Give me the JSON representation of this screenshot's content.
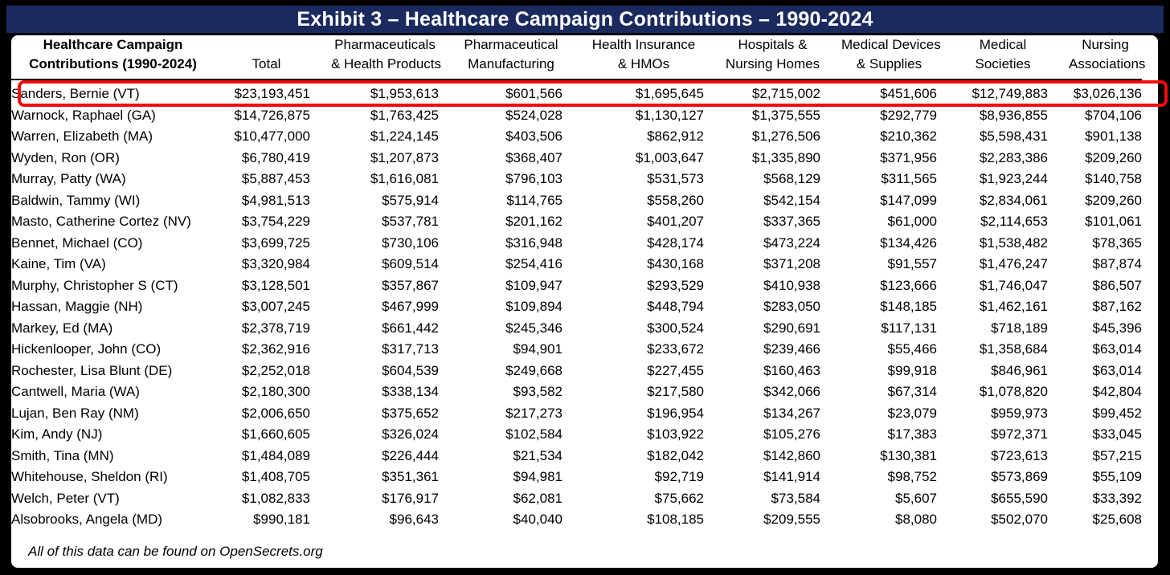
{
  "title": "Exhibit 3 – Healthcare Campaign Contributions – 1990-2024",
  "footer": "All of this data can be found on OpenSecrets.org",
  "colors": {
    "title_bar_background": "#1b2a5e",
    "title_text": "#ffffff",
    "page_border": "#000000",
    "table_background": "#ffffff",
    "highlight_border": "#f20d0d"
  },
  "highlight": {
    "highlighted_row": "Sanders, Bernie (VT)"
  },
  "table": {
    "columns": [
      {
        "id": "contributor",
        "lines": [
          "Healthcare Campaign",
          "Contributions (1990-2024)"
        ],
        "bold": true
      },
      {
        "id": "total",
        "lines": [
          "Total"
        ]
      },
      {
        "id": "pharmaceuticals-health-products",
        "lines": [
          "Pharmaceuticals",
          "& Health Products"
        ]
      },
      {
        "id": "pharmaceutical-manufacturing",
        "lines": [
          "Pharmaceutical",
          "Manufacturing"
        ]
      },
      {
        "id": "health-insurance-hmos",
        "lines": [
          "Health Insurance",
          "& HMOs"
        ]
      },
      {
        "id": "hospitals-nursing-homes",
        "lines": [
          "Hospitals &",
          "Nursing Homes"
        ]
      },
      {
        "id": "medical-devices-supplies",
        "lines": [
          "Medical Devices",
          "& Supplies"
        ]
      },
      {
        "id": "medical-societies",
        "lines": [
          "Medical",
          "Societies"
        ]
      },
      {
        "id": "nursing-associations",
        "lines": [
          "Nursing",
          "Associations"
        ]
      }
    ],
    "rows": [
      {
        "name": "Sanders, Bernie (VT)",
        "highlighted": true,
        "values": [
          "$23,193,451",
          "$1,953,613",
          "$601,566",
          "$1,695,645",
          "$2,715,002",
          "$451,606",
          "$12,749,883",
          "$3,026,136"
        ]
      },
      {
        "name": "Warnock, Raphael (GA)",
        "highlighted": false,
        "values": [
          "$14,726,875",
          "$1,763,425",
          "$524,028",
          "$1,130,127",
          "$1,375,555",
          "$292,779",
          "$8,936,855",
          "$704,106"
        ]
      },
      {
        "name": "Warren, Elizabeth (MA)",
        "highlighted": false,
        "values": [
          "$10,477,000",
          "$1,224,145",
          "$403,506",
          "$862,912",
          "$1,276,506",
          "$210,362",
          "$5,598,431",
          "$901,138"
        ]
      },
      {
        "name": "Wyden, Ron (OR)",
        "highlighted": false,
        "values": [
          "$6,780,419",
          "$1,207,873",
          "$368,407",
          "$1,003,647",
          "$1,335,890",
          "$371,956",
          "$2,283,386",
          "$209,260"
        ]
      },
      {
        "name": "Murray, Patty (WA)",
        "highlighted": false,
        "values": [
          "$5,887,453",
          "$1,616,081",
          "$796,103",
          "$531,573",
          "$568,129",
          "$311,565",
          "$1,923,244",
          "$140,758"
        ]
      },
      {
        "name": "Baldwin, Tammy (WI)",
        "highlighted": false,
        "values": [
          "$4,981,513",
          "$575,914",
          "$114,765",
          "$558,260",
          "$542,154",
          "$147,099",
          "$2,834,061",
          "$209,260"
        ]
      },
      {
        "name": "Masto, Catherine Cortez (NV)",
        "highlighted": false,
        "values": [
          "$3,754,229",
          "$537,781",
          "$201,162",
          "$401,207",
          "$337,365",
          "$61,000",
          "$2,114,653",
          "$101,061"
        ]
      },
      {
        "name": "Bennet, Michael (CO)",
        "highlighted": false,
        "values": [
          "$3,699,725",
          "$730,106",
          "$316,948",
          "$428,174",
          "$473,224",
          "$134,426",
          "$1,538,482",
          "$78,365"
        ]
      },
      {
        "name": "Kaine, Tim (VA)",
        "highlighted": false,
        "values": [
          "$3,320,984",
          "$609,514",
          "$254,416",
          "$430,168",
          "$371,208",
          "$91,557",
          "$1,476,247",
          "$87,874"
        ]
      },
      {
        "name": "Murphy, Christopher S (CT)",
        "highlighted": false,
        "values": [
          "$3,128,501",
          "$357,867",
          "$109,947",
          "$293,529",
          "$410,938",
          "$123,666",
          "$1,746,047",
          "$86,507"
        ]
      },
      {
        "name": "Hassan, Maggie (NH)",
        "highlighted": false,
        "values": [
          "$3,007,245",
          "$467,999",
          "$109,894",
          "$448,794",
          "$283,050",
          "$148,185",
          "$1,462,161",
          "$87,162"
        ]
      },
      {
        "name": "Markey, Ed (MA)",
        "highlighted": false,
        "values": [
          "$2,378,719",
          "$661,442",
          "$245,346",
          "$300,524",
          "$290,691",
          "$117,131",
          "$718,189",
          "$45,396"
        ]
      },
      {
        "name": "Hickenlooper, John (CO)",
        "highlighted": false,
        "values": [
          "$2,362,916",
          "$317,713",
          "$94,901",
          "$233,672",
          "$239,466",
          "$55,466",
          "$1,358,684",
          "$63,014"
        ]
      },
      {
        "name": "Rochester, Lisa Blunt (DE)",
        "highlighted": false,
        "values": [
          "$2,252,018",
          "$604,539",
          "$249,668",
          "$227,455",
          "$160,463",
          "$99,918",
          "$846,961",
          "$63,014"
        ]
      },
      {
        "name": "Cantwell, Maria (WA)",
        "highlighted": false,
        "values": [
          "$2,180,300",
          "$338,134",
          "$93,582",
          "$217,580",
          "$342,066",
          "$67,314",
          "$1,078,820",
          "$42,804"
        ]
      },
      {
        "name": "Lujan, Ben Ray (NM)",
        "highlighted": false,
        "values": [
          "$2,006,650",
          "$375,652",
          "$217,273",
          "$196,954",
          "$134,267",
          "$23,079",
          "$959,973",
          "$99,452"
        ]
      },
      {
        "name": "Kim, Andy (NJ)",
        "highlighted": false,
        "values": [
          "$1,660,605",
          "$326,024",
          "$102,584",
          "$103,922",
          "$105,276",
          "$17,383",
          "$972,371",
          "$33,045"
        ]
      },
      {
        "name": "Smith, Tina (MN)",
        "highlighted": false,
        "values": [
          "$1,484,089",
          "$226,444",
          "$21,534",
          "$182,042",
          "$142,860",
          "$130,381",
          "$723,613",
          "$57,215"
        ]
      },
      {
        "name": "Whitehouse, Sheldon (RI)",
        "highlighted": false,
        "values": [
          "$1,408,705",
          "$351,361",
          "$94,981",
          "$92,719",
          "$141,914",
          "$98,752",
          "$573,869",
          "$55,109"
        ]
      },
      {
        "name": "Welch, Peter (VT)",
        "highlighted": false,
        "values": [
          "$1,082,833",
          "$176,917",
          "$62,081",
          "$75,662",
          "$73,584",
          "$5,607",
          "$655,590",
          "$33,392"
        ]
      },
      {
        "name": "Alsobrooks, Angela (MD)",
        "highlighted": false,
        "values": [
          "$990,181",
          "$96,643",
          "$40,040",
          "$108,185",
          "$209,555",
          "$8,080",
          "$502,070",
          "$25,608"
        ]
      }
    ]
  }
}
